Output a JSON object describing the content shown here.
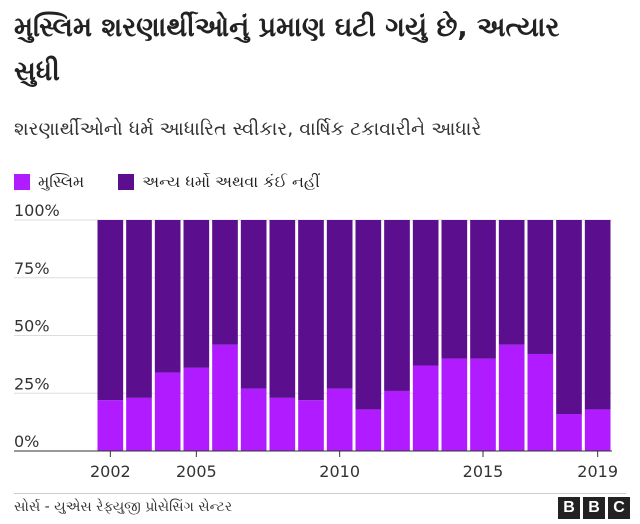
{
  "title": "મુસ્લિમ શરણાર્થીઓનું પ્રમાણ ઘટી ગયું છે, અત્યાર સુધી",
  "subtitle": "શરણાર્થીઓનો ધર્મ આધારિત સ્વીકાર, વાર્ષિક ટકાવારીને આધારે",
  "legend": {
    "muslim": "મુસ્લિમ",
    "other": "અન્ય ધર્મો અથવા કંઈ નહીં"
  },
  "colors": {
    "muslim": "#b11bff",
    "other": "#5b0f8e"
  },
  "source": "સોર્સ - યુએસ રેફ્યુજી પ્રોસેસિંગ સેન્ટર",
  "logo": [
    "B",
    "B",
    "C"
  ],
  "chart_data": {
    "type": "bar",
    "stacked": true,
    "categories": [
      "2002",
      "2003",
      "2004",
      "2005",
      "2006",
      "2007",
      "2008",
      "2009",
      "2010",
      "2011",
      "2012",
      "2013",
      "2014",
      "2015",
      "2016",
      "2017",
      "2018",
      "2019"
    ],
    "series": [
      {
        "name": "મુસ્લિમ",
        "values": [
          22,
          23,
          34,
          36,
          46,
          27,
          23,
          22,
          27,
          18,
          26,
          37,
          40,
          40,
          46,
          42,
          16,
          18
        ]
      },
      {
        "name": "અન્ય ધર્મો અથવા કંઈ નહીં",
        "values": [
          78,
          77,
          66,
          64,
          54,
          73,
          77,
          78,
          73,
          82,
          74,
          63,
          60,
          60,
          54,
          58,
          84,
          82
        ]
      }
    ],
    "yticks": [
      "0%",
      "25%",
      "50%",
      "75%",
      "100%"
    ],
    "xticks": [
      "2002",
      "2005",
      "2010",
      "2015",
      "2019"
    ],
    "ylim": [
      0,
      100
    ],
    "grid": true,
    "legend_position": "top-left"
  }
}
